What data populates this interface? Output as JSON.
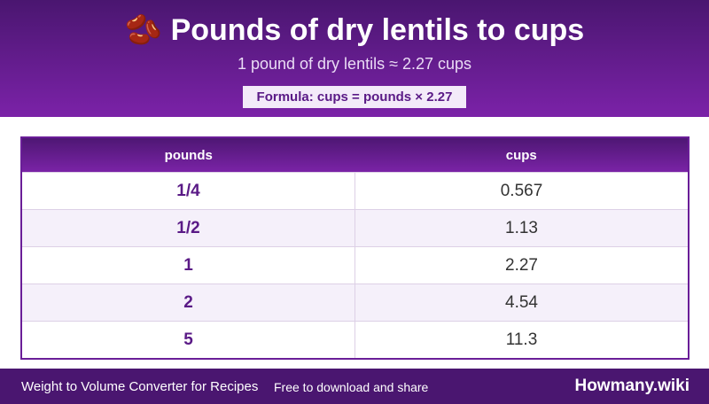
{
  "header": {
    "icon": "🫘",
    "title": "Pounds of dry lentils to cups",
    "subtitle": "1 pound of dry lentils ≈ 2.27 cups",
    "formula": "Formula: cups = pounds × 2.27"
  },
  "table": {
    "columns": [
      "pounds",
      "cups"
    ],
    "rows": [
      [
        "1/4",
        "0.567"
      ],
      [
        "1/2",
        "1.13"
      ],
      [
        "1",
        "2.27"
      ],
      [
        "2",
        "4.54"
      ],
      [
        "5",
        "11.3"
      ]
    ]
  },
  "footer": {
    "left": "Weight to Volume Converter for Recipes",
    "middle": "Free to download and share",
    "brand": "Howmany.wiki"
  }
}
